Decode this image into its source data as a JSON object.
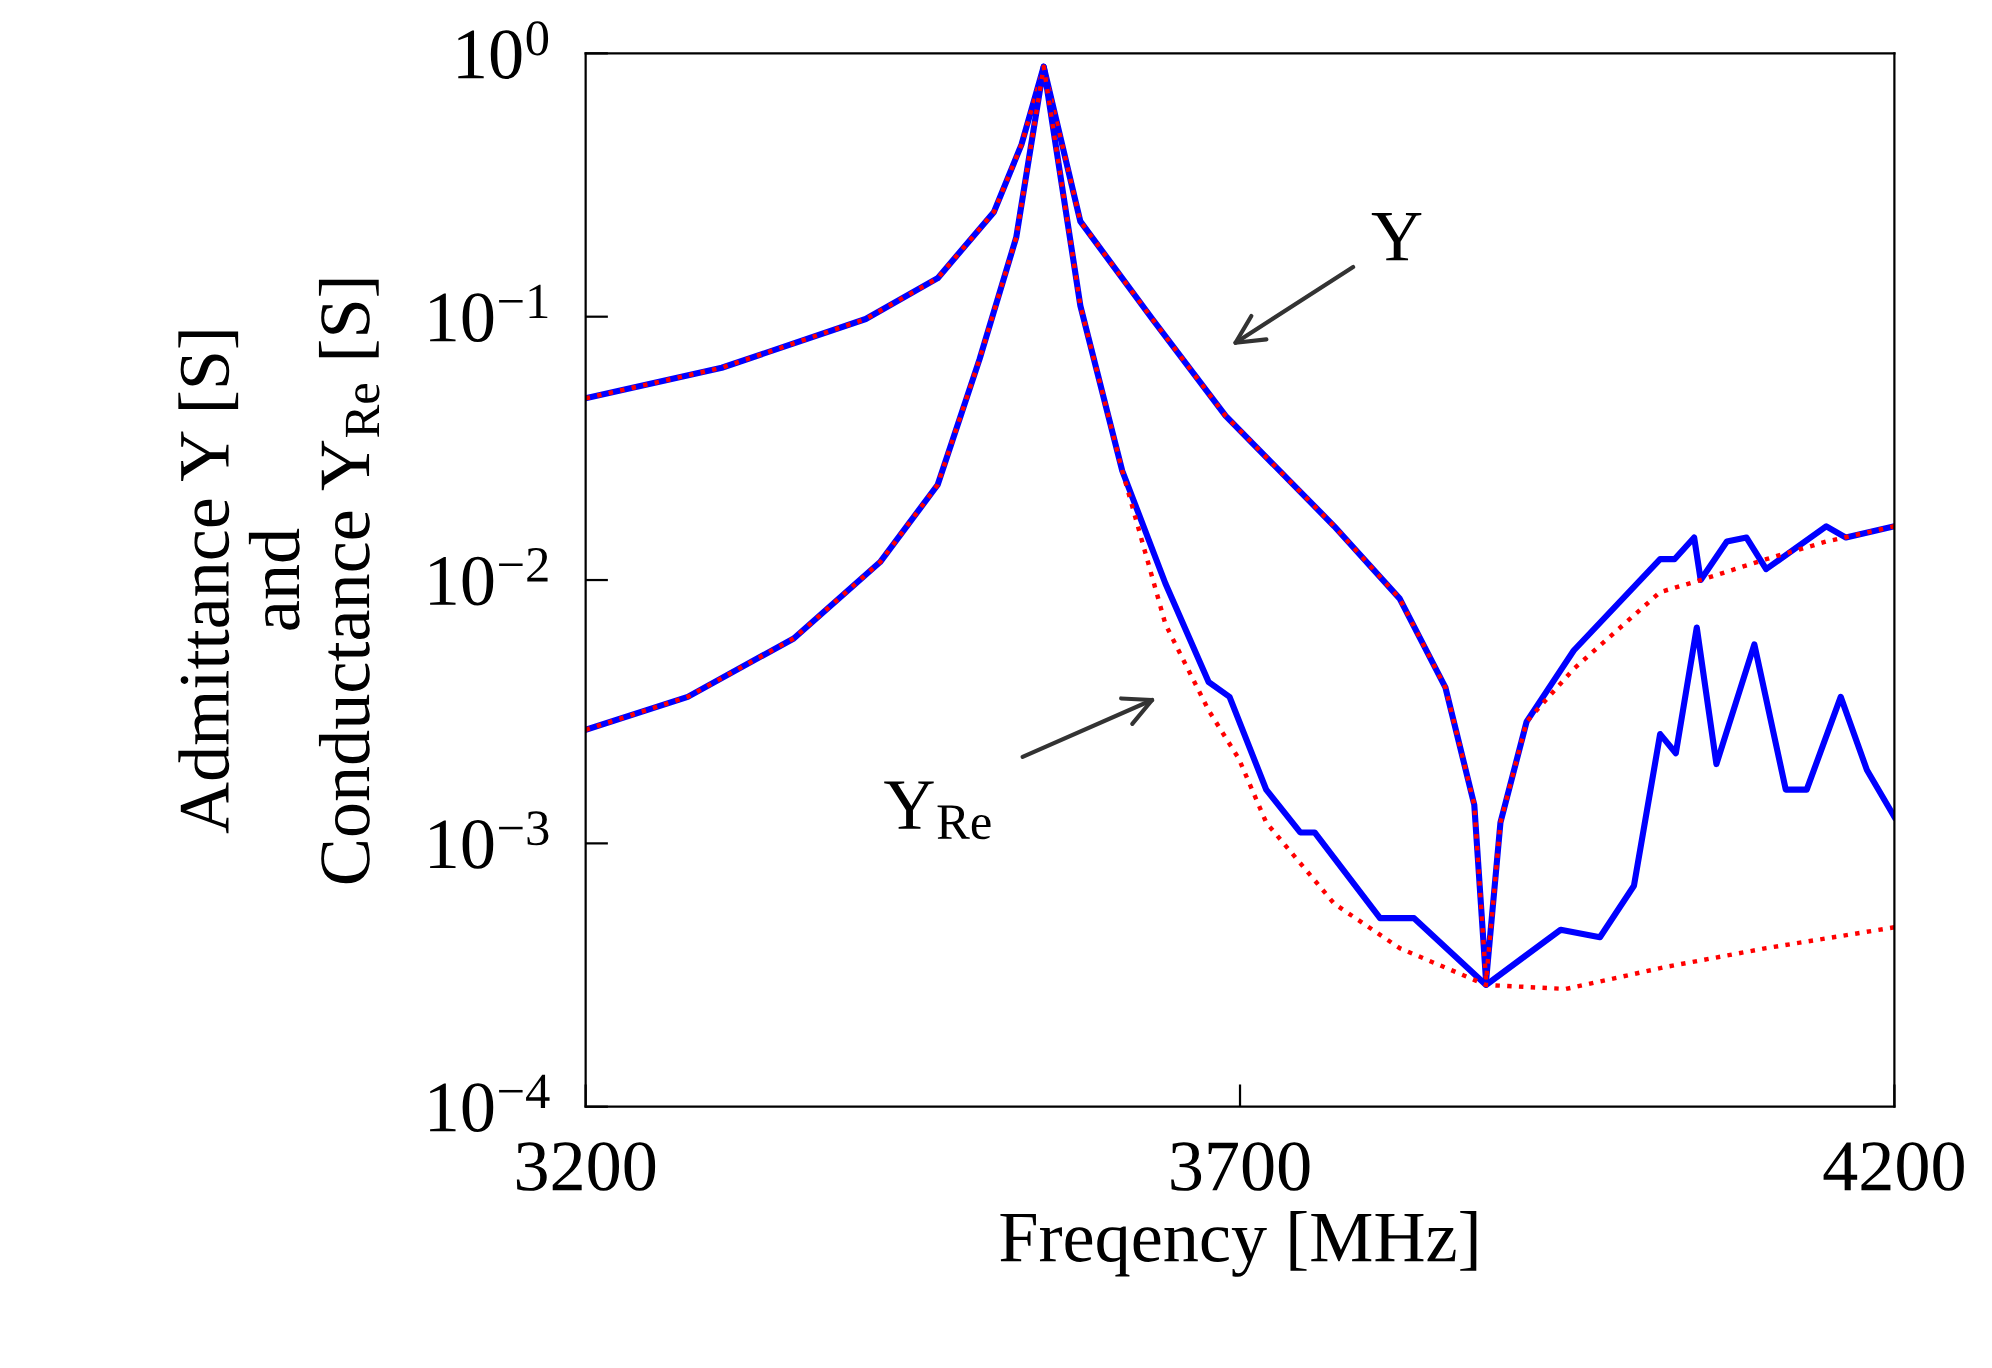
{
  "chart_data": {
    "type": "line",
    "xlabel": "Freqency [MHz]",
    "ylabel": "Admittance Y [S]\nand\nConductance Y$_{Re}$ [S]",
    "log": "y",
    "xlim": [
      3200,
      4200
    ],
    "xticks": [
      3200,
      3700,
      4200
    ],
    "ylim": [
      0.0001,
      1
    ],
    "yticks": [
      {
        "value": 1,
        "label": "10$^{0}$"
      },
      {
        "value": 0.1,
        "label": "10$^{−1}$"
      },
      {
        "value": 0.01,
        "label": "10$^{−2}$"
      },
      {
        "value": 0.001,
        "label": "10$^{−3}$"
      },
      {
        "value": 0.0001,
        "label": "10$^{−4}$"
      }
    ],
    "grid": false,
    "legend": false,
    "marker": "none",
    "series": [
      {
        "color": "#0000ff",
        "line_style": "solid",
        "x": [
          3200,
          3304,
          3414,
          3469,
          3512,
          3533,
          3550,
          3578,
          3633,
          3689,
          3772,
          3822,
          3857,
          3879,
          3888,
          3899,
          3919,
          3955,
          4021,
          4032,
          4047,
          4052,
          4072,
          4087,
          4102,
          4148,
          4163,
          4200
        ],
        "values": [
          0.049,
          0.064,
          0.098,
          0.14,
          0.25,
          0.45,
          0.89,
          0.23,
          0.098,
          0.042,
          0.016,
          0.0085,
          0.0039,
          0.0014,
          0.0003,
          0.0012,
          0.0029,
          0.0054,
          0.012,
          0.012,
          0.0145,
          0.01,
          0.014,
          0.0145,
          0.011,
          0.016,
          0.0145,
          0.016
        ]
      },
      {
        "color": "#ff0000",
        "line_style": "dotted",
        "x": [
          3200,
          3304,
          3414,
          3469,
          3512,
          3533,
          3550,
          3578,
          3633,
          3689,
          3772,
          3822,
          3857,
          3879,
          3888,
          3899,
          3919,
          3955,
          4021,
          4052,
          4102,
          4148,
          4200
        ],
        "values": [
          0.049,
          0.064,
          0.098,
          0.14,
          0.25,
          0.45,
          0.89,
          0.23,
          0.098,
          0.042,
          0.016,
          0.0085,
          0.0039,
          0.0014,
          0.0003,
          0.0012,
          0.0029,
          0.0046,
          0.009,
          0.01,
          0.012,
          0.014,
          0.016
        ]
      },
      {
        "color": "#0000ff",
        "line_style": "solid",
        "x": [
          3200,
          3278,
          3359,
          3425,
          3469,
          3501,
          3529,
          3550,
          3578,
          3610,
          3643,
          3676,
          3692,
          3720,
          3746,
          3757,
          3807,
          3833,
          3888,
          3945,
          3975,
          4001,
          4021,
          4033,
          4049,
          4064,
          4093,
          4117,
          4133,
          4159,
          4179,
          4200
        ],
        "values": [
          0.0027,
          0.0036,
          0.006,
          0.0117,
          0.023,
          0.069,
          0.2,
          0.89,
          0.11,
          0.026,
          0.0097,
          0.0041,
          0.0036,
          0.0016,
          0.0011,
          0.0011,
          0.00052,
          0.00052,
          0.00029,
          0.00047,
          0.00044,
          0.00069,
          0.0026,
          0.0022,
          0.0066,
          0.002,
          0.0057,
          0.0016,
          0.0016,
          0.0036,
          0.0019,
          0.00126
        ]
      },
      {
        "color": "#ff0000",
        "line_style": "dotted",
        "x": [
          3200,
          3278,
          3359,
          3425,
          3469,
          3501,
          3529,
          3550,
          3578,
          3610,
          3643,
          3676,
          3699,
          3720,
          3772,
          3822,
          3888,
          3949,
          4026,
          4102,
          4200
        ],
        "values": [
          0.0027,
          0.0036,
          0.006,
          0.0117,
          0.023,
          0.069,
          0.2,
          0.89,
          0.11,
          0.026,
          0.0068,
          0.0032,
          0.0021,
          0.0012,
          0.00059,
          0.0004,
          0.00029,
          0.00028,
          0.00034,
          0.0004,
          0.00048
        ]
      }
    ],
    "annotations": [
      "Y",
      "Y$_{Re}$"
    ]
  }
}
